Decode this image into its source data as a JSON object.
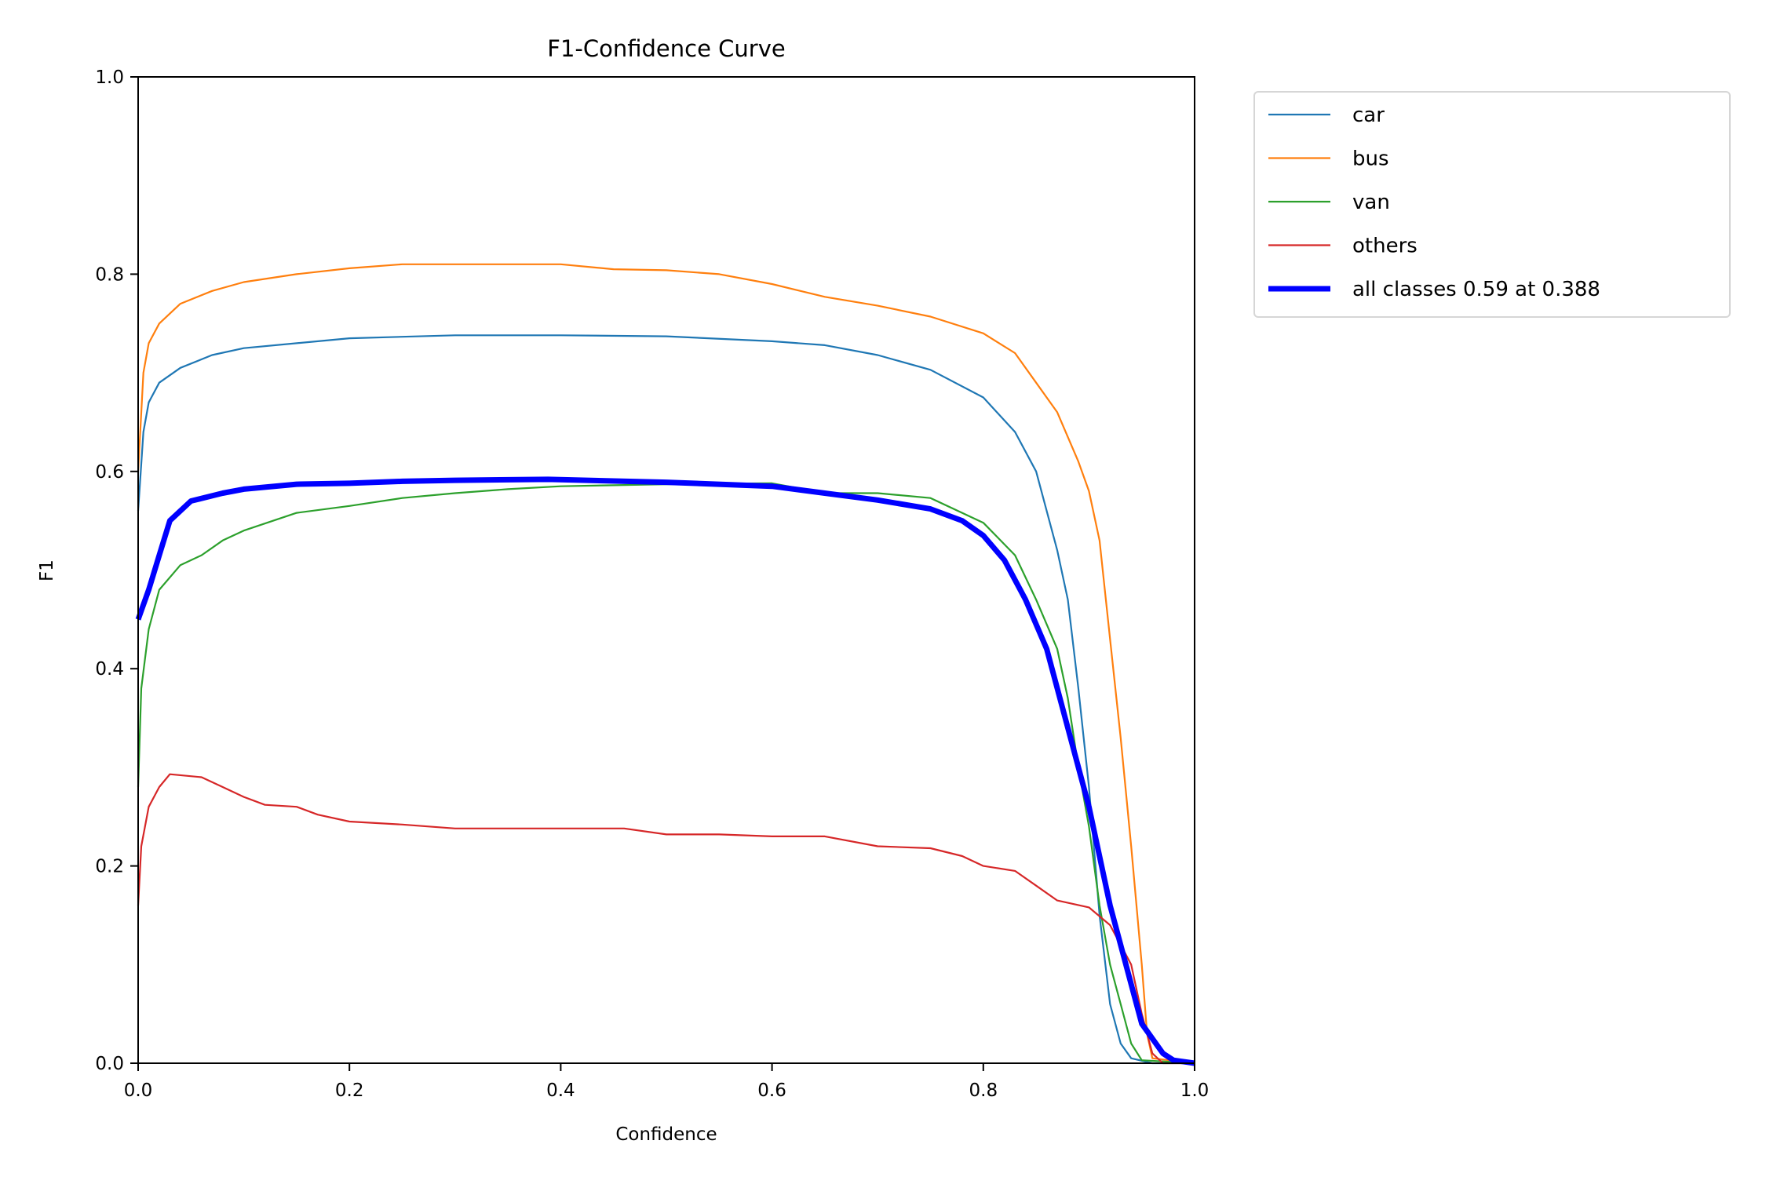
{
  "chart_data": {
    "type": "line",
    "title": "F1-Confidence Curve",
    "xlabel": "Confidence",
    "ylabel": "F1",
    "xlim": [
      0,
      1
    ],
    "ylim": [
      0,
      1
    ],
    "xticks": [
      "0.0",
      "0.2",
      "0.4",
      "0.6",
      "0.8",
      "1.0"
    ],
    "yticks": [
      "0.0",
      "0.2",
      "0.4",
      "0.6",
      "0.8",
      "1.0"
    ],
    "grid": false,
    "legend_placement": "outside-top-right",
    "series": [
      {
        "name": "car",
        "color": "#1f77b4",
        "width": "thin",
        "x": [
          0,
          0.005,
          0.01,
          0.02,
          0.04,
          0.07,
          0.1,
          0.2,
          0.3,
          0.4,
          0.5,
          0.6,
          0.65,
          0.7,
          0.75,
          0.8,
          0.83,
          0.85,
          0.87,
          0.88,
          0.89,
          0.9,
          0.91,
          0.92,
          0.93,
          0.94,
          0.96,
          1.0
        ],
        "y": [
          0.56,
          0.64,
          0.67,
          0.69,
          0.705,
          0.718,
          0.725,
          0.735,
          0.738,
          0.738,
          0.737,
          0.732,
          0.728,
          0.718,
          0.703,
          0.675,
          0.64,
          0.6,
          0.52,
          0.47,
          0.38,
          0.28,
          0.15,
          0.06,
          0.02,
          0.005,
          0,
          0
        ]
      },
      {
        "name": "bus",
        "color": "#ff7f0e",
        "width": "thin",
        "x": [
          0,
          0.005,
          0.01,
          0.02,
          0.04,
          0.07,
          0.1,
          0.15,
          0.2,
          0.25,
          0.3,
          0.4,
          0.45,
          0.5,
          0.55,
          0.6,
          0.65,
          0.7,
          0.75,
          0.8,
          0.83,
          0.85,
          0.87,
          0.89,
          0.9,
          0.91,
          0.92,
          0.93,
          0.94,
          0.95,
          0.955,
          0.96,
          1.0
        ],
        "y": [
          0.6,
          0.7,
          0.73,
          0.75,
          0.77,
          0.783,
          0.792,
          0.8,
          0.806,
          0.81,
          0.81,
          0.81,
          0.805,
          0.804,
          0.8,
          0.79,
          0.777,
          0.768,
          0.757,
          0.74,
          0.72,
          0.69,
          0.66,
          0.61,
          0.58,
          0.53,
          0.43,
          0.33,
          0.22,
          0.1,
          0.03,
          0.005,
          0
        ]
      },
      {
        "name": "van",
        "color": "#2ca02c",
        "width": "thin",
        "x": [
          0,
          0.003,
          0.01,
          0.02,
          0.04,
          0.06,
          0.08,
          0.1,
          0.15,
          0.2,
          0.25,
          0.3,
          0.35,
          0.4,
          0.5,
          0.6,
          0.65,
          0.7,
          0.75,
          0.8,
          0.83,
          0.85,
          0.87,
          0.88,
          0.89,
          0.9,
          0.91,
          0.92,
          0.93,
          0.94,
          0.95,
          1.0
        ],
        "y": [
          0.28,
          0.38,
          0.44,
          0.48,
          0.505,
          0.515,
          0.53,
          0.54,
          0.558,
          0.565,
          0.573,
          0.578,
          0.582,
          0.585,
          0.587,
          0.588,
          0.578,
          0.578,
          0.573,
          0.548,
          0.515,
          0.47,
          0.42,
          0.37,
          0.3,
          0.24,
          0.16,
          0.1,
          0.06,
          0.02,
          0.003,
          0
        ]
      },
      {
        "name": "others",
        "color": "#d62728",
        "width": "thin",
        "x": [
          0,
          0.003,
          0.01,
          0.02,
          0.03,
          0.06,
          0.08,
          0.1,
          0.12,
          0.15,
          0.17,
          0.2,
          0.25,
          0.3,
          0.4,
          0.46,
          0.5,
          0.55,
          0.6,
          0.65,
          0.7,
          0.75,
          0.78,
          0.8,
          0.83,
          0.85,
          0.87,
          0.9,
          0.92,
          0.93,
          0.94,
          0.95,
          0.96,
          0.97,
          1.0
        ],
        "y": [
          0.16,
          0.22,
          0.26,
          0.28,
          0.293,
          0.29,
          0.28,
          0.27,
          0.262,
          0.26,
          0.252,
          0.245,
          0.242,
          0.238,
          0.238,
          0.238,
          0.232,
          0.232,
          0.23,
          0.23,
          0.22,
          0.218,
          0.21,
          0.2,
          0.195,
          0.18,
          0.165,
          0.158,
          0.14,
          0.12,
          0.1,
          0.05,
          0.01,
          0,
          0
        ]
      },
      {
        "name": "all classes 0.59 at 0.388",
        "color": "#0000ff",
        "width": "thick",
        "x": [
          0,
          0.01,
          0.02,
          0.03,
          0.05,
          0.08,
          0.1,
          0.15,
          0.2,
          0.25,
          0.3,
          0.388,
          0.5,
          0.6,
          0.65,
          0.7,
          0.75,
          0.78,
          0.8,
          0.82,
          0.84,
          0.86,
          0.88,
          0.9,
          0.92,
          0.94,
          0.95,
          0.97,
          0.98,
          1.0
        ],
        "y": [
          0.45,
          0.48,
          0.515,
          0.55,
          0.57,
          0.578,
          0.582,
          0.587,
          0.588,
          0.59,
          0.591,
          0.592,
          0.589,
          0.585,
          0.578,
          0.571,
          0.562,
          0.55,
          0.535,
          0.51,
          0.47,
          0.42,
          0.34,
          0.26,
          0.16,
          0.08,
          0.04,
          0.01,
          0.003,
          0
        ]
      }
    ]
  }
}
